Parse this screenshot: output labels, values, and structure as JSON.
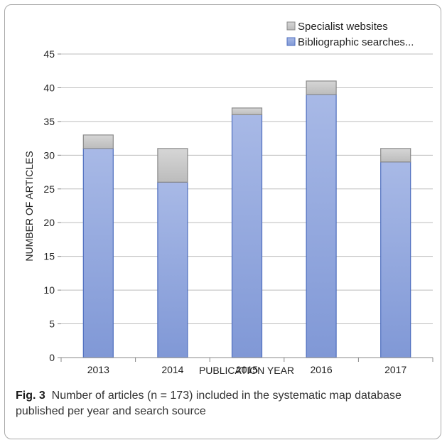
{
  "chart_data": {
    "type": "bar",
    "stacked": true,
    "categories": [
      "2013",
      "2014",
      "2015",
      "2016",
      "2017"
    ],
    "series": [
      {
        "name": "Bibliographic searches...",
        "values": [
          31,
          26,
          36,
          39,
          29
        ],
        "color": "#8ea5dd"
      },
      {
        "name": "Specialist websites",
        "values": [
          2,
          5,
          1,
          2,
          2
        ],
        "color": "#c4c4c4"
      }
    ],
    "xlabel": "PUBLICATION YEAR",
    "ylabel": "NUMBER OF ARTICLES",
    "ylim": [
      0,
      45
    ],
    "yticks": [
      "0",
      "5",
      "10",
      "15",
      "20",
      "25",
      "30",
      "35",
      "40",
      "45"
    ],
    "grid": true,
    "legend_position": "top-right"
  },
  "caption": {
    "label": "Fig. 3",
    "text": "Number of articles (n = 173) included in the systematic map database published per year and search source"
  }
}
